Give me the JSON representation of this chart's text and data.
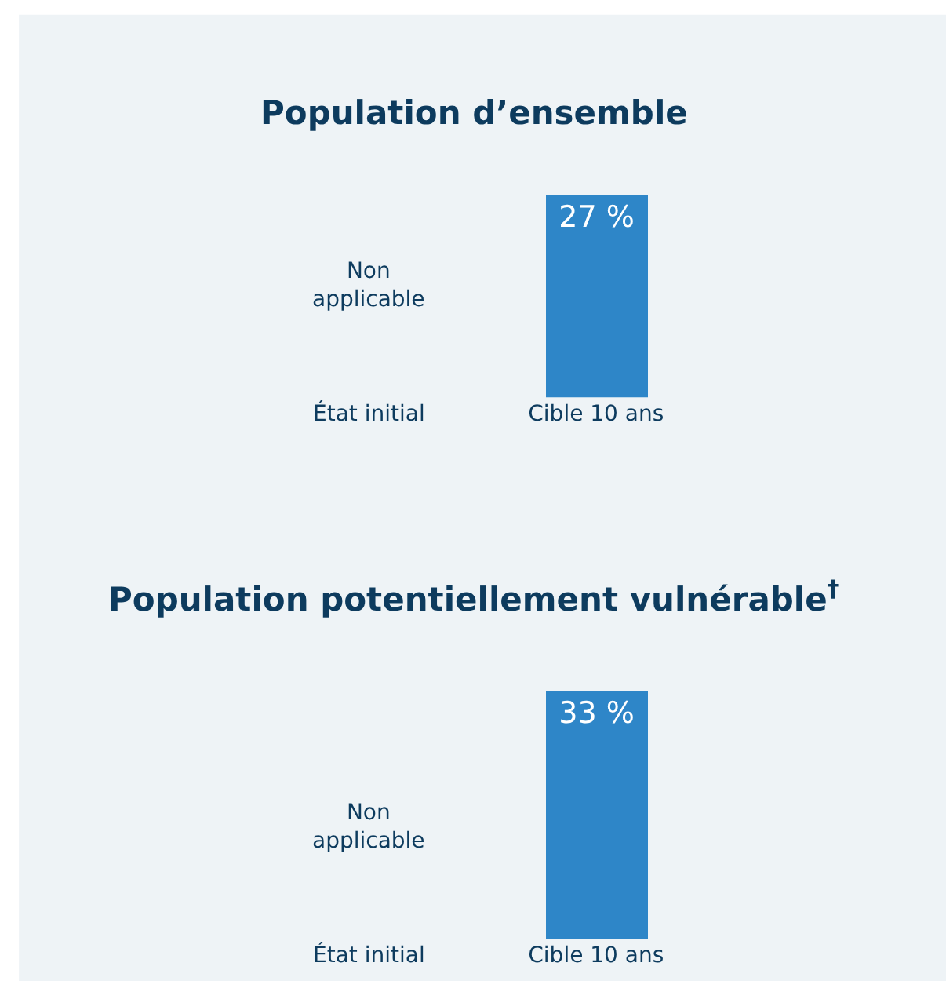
{
  "chart_data": [
    {
      "type": "bar",
      "title": "Population d’ensemble",
      "categories": [
        "État initial",
        "Cible 10 ans"
      ],
      "values": [
        null,
        27
      ],
      "value_labels": [
        null,
        "27 %"
      ],
      "color": "#2e86c8",
      "annotations": [
        "Non applicable"
      ],
      "tick_labels": "x",
      "grid": false
    },
    {
      "type": "bar",
      "title": "Population potentiellement vulnérable$^{†}$",
      "categories": [
        "État initial",
        "Cible 10 ans"
      ],
      "values": [
        null,
        33
      ],
      "value_labels": [
        null,
        "33 %"
      ],
      "color": "#2e86c8",
      "annotations": [
        "Non applicable"
      ],
      "tick_labels": "x",
      "grid": false
    }
  ]
}
